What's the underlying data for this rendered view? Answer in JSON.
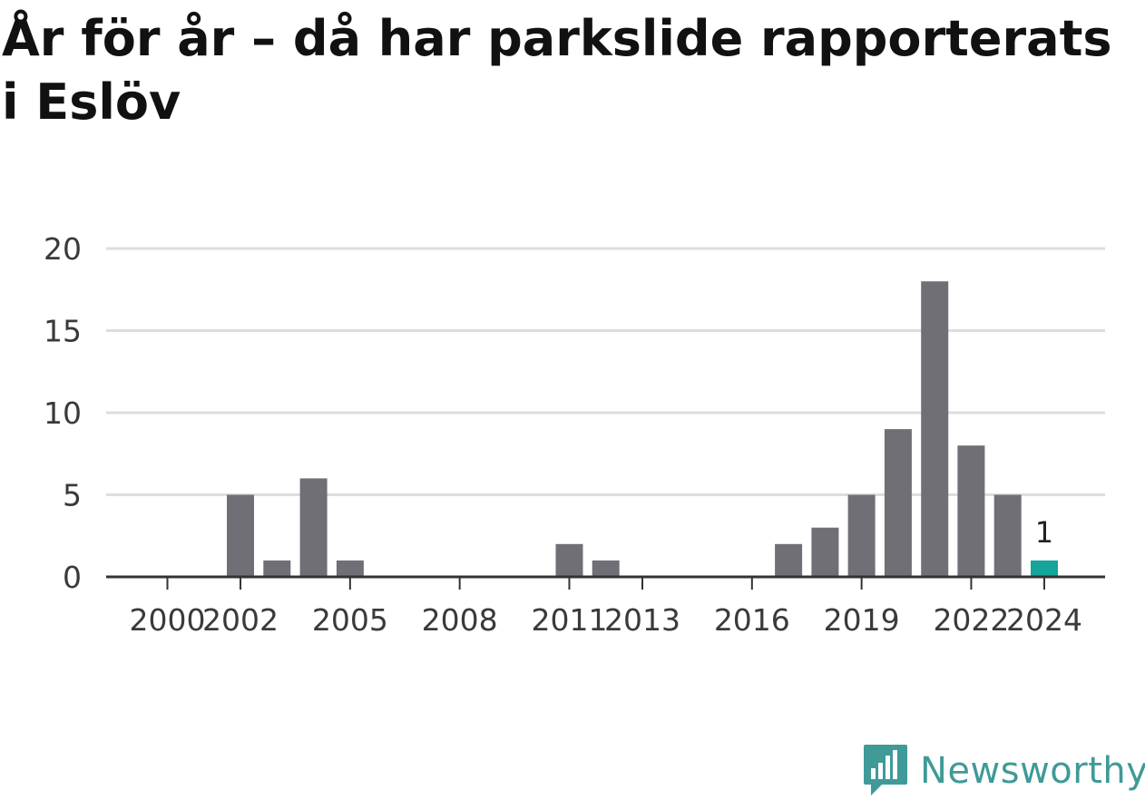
{
  "title": "År för år – då har parkslide rapporterats i Eslöv",
  "brand": {
    "name": "Newsworthy",
    "color": "#3f9a98",
    "icon": "newsworthy-logo-icon"
  },
  "colors": {
    "bar": "#706f75",
    "highlight": "#15a59a",
    "grid": "#dddddd",
    "axis": "#333333"
  },
  "chart_data": {
    "type": "bar",
    "title": "År för år – då har parkslide rapporterats i Eslöv",
    "xlabel": "",
    "ylabel": "",
    "ylim": [
      0,
      20
    ],
    "yticks": [
      0,
      5,
      10,
      15,
      20
    ],
    "grid": true,
    "categories": [
      2000,
      2001,
      2002,
      2003,
      2004,
      2005,
      2006,
      2007,
      2008,
      2009,
      2010,
      2011,
      2012,
      2013,
      2014,
      2015,
      2016,
      2017,
      2018,
      2019,
      2020,
      2021,
      2022,
      2023,
      2024
    ],
    "values": [
      0,
      0,
      5,
      1,
      6,
      1,
      0,
      0,
      0,
      0,
      0,
      2,
      1,
      0,
      0,
      0,
      0,
      2,
      3,
      5,
      9,
      18,
      8,
      5,
      1
    ],
    "xtick_labels": [
      "2000",
      "2002",
      "2005",
      "2008",
      "2011",
      "2013",
      "2016",
      "2019",
      "2022",
      "2024"
    ],
    "highlight_category": 2024,
    "annotations": [
      {
        "category": 2024,
        "text": "1"
      }
    ]
  }
}
